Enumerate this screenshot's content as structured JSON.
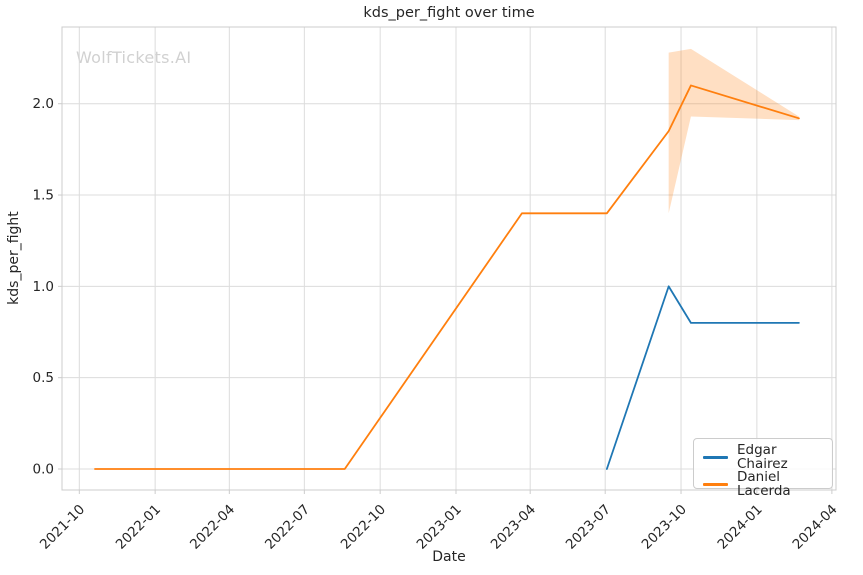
{
  "watermark": "WolfTickets.AI",
  "colors": {
    "series_blue": "#1f77b4",
    "series_orange": "#ff7f0e",
    "grid": "#dcdcdc",
    "spine": "#cccccc",
    "text": "#262626",
    "watermark": "#d1d1d1"
  },
  "chart_data": {
    "type": "line",
    "title": "kds_per_fight over time",
    "xlabel": "Date",
    "ylabel": "kds_per_fight",
    "grid": true,
    "legend_position": "lower right",
    "xlim": [
      "2021-09-10",
      "2024-04-06"
    ],
    "ylim": [
      -0.115,
      2.42
    ],
    "x_ticks": [
      {
        "label": "2021-10",
        "date": "2021-10-01"
      },
      {
        "label": "2022-01",
        "date": "2022-01-01"
      },
      {
        "label": "2022-04",
        "date": "2022-04-01"
      },
      {
        "label": "2022-07",
        "date": "2022-07-01"
      },
      {
        "label": "2022-10",
        "date": "2022-10-01"
      },
      {
        "label": "2023-01",
        "date": "2023-01-01"
      },
      {
        "label": "2023-04",
        "date": "2023-04-01"
      },
      {
        "label": "2023-07",
        "date": "2023-07-01"
      },
      {
        "label": "2023-10",
        "date": "2023-10-01"
      },
      {
        "label": "2024-01",
        "date": "2024-01-01"
      },
      {
        "label": "2024-04",
        "date": "2024-04-01"
      }
    ],
    "y_ticks": [
      {
        "label": "0.0",
        "value": 0.0
      },
      {
        "label": "0.5",
        "value": 0.5
      },
      {
        "label": "1.0",
        "value": 1.0
      },
      {
        "label": "1.5",
        "value": 1.5
      },
      {
        "label": "2.0",
        "value": 2.0
      }
    ],
    "series": [
      {
        "name": "Edgar Chairez",
        "color": "#1f77b4",
        "points": [
          {
            "date": "2023-07-03",
            "value": 0.0
          },
          {
            "date": "2023-09-16",
            "value": 1.0
          },
          {
            "date": "2023-10-13",
            "value": 0.8
          },
          {
            "date": "2024-02-21",
            "value": 0.8
          }
        ]
      },
      {
        "name": "Daniel Lacerda",
        "color": "#ff7f0e",
        "points": [
          {
            "date": "2021-10-20",
            "value": 0.0
          },
          {
            "date": "2022-08-19",
            "value": 0.0
          },
          {
            "date": "2023-03-22",
            "value": 1.4
          },
          {
            "date": "2023-07-03",
            "value": 1.4
          },
          {
            "date": "2023-09-16",
            "value": 1.85
          },
          {
            "date": "2023-10-13",
            "value": 2.1
          },
          {
            "date": "2024-02-21",
            "value": 1.92
          }
        ]
      }
    ],
    "band": {
      "series": "Daniel Lacerda",
      "color": "#ff7f0e",
      "opacity": 0.25,
      "points": [
        {
          "date": "2023-09-16",
          "lower": 1.4,
          "upper": 2.28
        },
        {
          "date": "2023-10-13",
          "lower": 1.93,
          "upper": 2.3
        },
        {
          "date": "2024-02-21",
          "lower": 1.91,
          "upper": 1.93
        }
      ]
    }
  }
}
